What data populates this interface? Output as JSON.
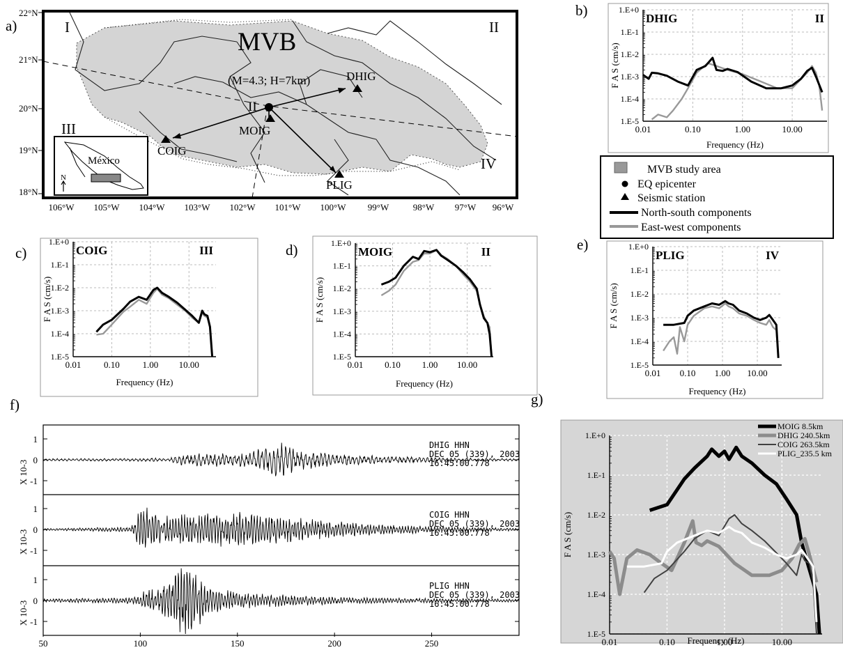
{
  "panel_letters": {
    "a": "a)",
    "b": "b)",
    "c": "c)",
    "d": "d)",
    "e": "e)",
    "f": "f)",
    "g": "g)"
  },
  "map": {
    "title": "MVB",
    "region_labels": [
      "I",
      "II",
      "III",
      "IV"
    ],
    "event_label": "(M=4.3; H=7km)",
    "epicenter_label": "II",
    "inset_country": "México",
    "north_arrow": "N",
    "lat_labels": [
      "22°N",
      "21°N",
      "20°N",
      "19°N",
      "18°N"
    ],
    "lon_labels": [
      "106°W",
      "105°W",
      "104°W",
      "103°W",
      "102°W",
      "101°W",
      "100°W",
      "99°W",
      "98°W",
      "97°W",
      "96°W"
    ],
    "stations": [
      {
        "name": "DHIG",
        "lon": -99.0,
        "lat": 20.35
      },
      {
        "name": "MOIG",
        "lon": -101.25,
        "lat": 19.75
      },
      {
        "name": "COIG",
        "lon": -103.75,
        "lat": 19.25
      },
      {
        "name": "PLIG",
        "lon": -99.45,
        "lat": 18.45
      }
    ],
    "epicenter": {
      "lon": -101.2,
      "lat": 19.95
    },
    "colors": {
      "study_area": "#d4d4d4",
      "station": "#000000"
    }
  },
  "legend": [
    {
      "symbol": "square",
      "label": "MVB study area",
      "color": "#999999"
    },
    {
      "symbol": "circle",
      "label": "EQ epicenter",
      "color": "#000000"
    },
    {
      "symbol": "triangle",
      "label": "Seismic station",
      "color": "#000000"
    },
    {
      "symbol": "line",
      "label": "North-south components",
      "color": "#000000"
    },
    {
      "symbol": "line",
      "label": "East-west components",
      "color": "#999999"
    }
  ],
  "chart_data": [
    {
      "type": "line",
      "panel": "b",
      "station": "DHIG",
      "zone": "II",
      "xlabel": "Frequency (Hz)",
      "ylabel": "F A S  (cm/s)",
      "xscale": "log",
      "yscale": "log",
      "xlim": [
        0.01,
        50
      ],
      "ylim": [
        1e-05,
        1
      ],
      "xticks": [
        "0.01",
        "0.10",
        "1.00",
        "10.00"
      ],
      "yticks": [
        "1.E-5",
        "1.E-4",
        "1.E-3",
        "1.E-2",
        "1.E-1",
        "1.E+0"
      ],
      "series": [
        {
          "component": "north-south",
          "color": "#000000",
          "x": [
            0.01,
            0.013,
            0.015,
            0.02,
            0.03,
            0.05,
            0.08,
            0.12,
            0.18,
            0.25,
            0.3,
            0.4,
            0.5,
            0.8,
            1.5,
            3,
            6,
            10,
            15,
            20,
            25,
            30,
            40
          ],
          "y": [
            0.0012,
            0.0008,
            0.0015,
            0.0014,
            0.0011,
            0.0006,
            0.0004,
            0.002,
            0.003,
            0.007,
            0.002,
            0.0018,
            0.0022,
            0.0016,
            0.0006,
            0.0003,
            0.0003,
            0.0004,
            0.0008,
            0.0018,
            0.0025,
            0.001,
            0.0002
          ]
        },
        {
          "component": "east-west",
          "color": "#999999",
          "x": [
            0.015,
            0.02,
            0.03,
            0.04,
            0.06,
            0.08,
            0.12,
            0.2,
            0.3,
            0.5,
            1,
            2,
            5,
            10,
            20,
            25,
            30,
            35,
            40
          ],
          "y": [
            1.2e-05,
            2e-05,
            1.5e-05,
            3e-05,
            0.0001,
            0.0003,
            0.0015,
            0.004,
            0.003,
            0.002,
            0.0013,
            0.0007,
            0.0003,
            0.0003,
            0.0015,
            0.003,
            0.0015,
            0.0004,
            3e-05
          ]
        }
      ]
    },
    {
      "type": "line",
      "panel": "c",
      "station": "COIG",
      "zone": "III",
      "xlabel": "Frequency (Hz)",
      "ylabel": "F A S  (cm/s)",
      "xscale": "log",
      "yscale": "log",
      "xlim": [
        0.01,
        50
      ],
      "ylim": [
        1e-05,
        1
      ],
      "xticks": [
        "0.01",
        "0.10",
        "1.00",
        "10.00"
      ],
      "yticks": [
        "1.E-5",
        "1.E-4",
        "1.E-3",
        "1.E-2",
        "1.E-1",
        "1.E+0"
      ],
      "series": [
        {
          "component": "north-south",
          "color": "#000000",
          "x": [
            0.04,
            0.06,
            0.1,
            0.2,
            0.3,
            0.5,
            0.8,
            1.2,
            1.5,
            2,
            3,
            5,
            8,
            12,
            18,
            22,
            25,
            30,
            35,
            40
          ],
          "y": [
            0.00012,
            0.00025,
            0.0004,
            0.0012,
            0.0025,
            0.004,
            0.003,
            0.008,
            0.01,
            0.006,
            0.004,
            0.0022,
            0.0011,
            0.0006,
            0.0003,
            0.001,
            0.0007,
            0.0006,
            0.0002,
            1e-05
          ]
        },
        {
          "component": "east-west",
          "color": "#999999",
          "x": [
            0.04,
            0.06,
            0.1,
            0.2,
            0.3,
            0.5,
            0.8,
            1.2,
            1.5,
            2,
            3,
            5,
            8,
            12,
            18,
            22,
            25,
            30,
            35,
            40
          ],
          "y": [
            9e-05,
            0.0001,
            0.00025,
            0.0009,
            0.0015,
            0.003,
            0.002,
            0.006,
            0.009,
            0.005,
            0.0035,
            0.0018,
            0.001,
            0.0005,
            0.0003,
            0.0008,
            0.0006,
            0.0005,
            0.0002,
            1e-05
          ]
        }
      ]
    },
    {
      "type": "line",
      "panel": "d",
      "station": "MOIG",
      "zone": "II",
      "xlabel": "Frequency (Hz)",
      "ylabel": "F A S  (cm/s)",
      "xscale": "log",
      "yscale": "log",
      "xlim": [
        0.01,
        50
      ],
      "ylim": [
        1e-05,
        1
      ],
      "xticks": [
        "0.01",
        "0.10",
        "1.00",
        "10.00"
      ],
      "yticks": [
        "1.E-5",
        "1.E-4",
        "1.E-3",
        "1.E-2",
        "1.E-1",
        "1.E+0"
      ],
      "series": [
        {
          "component": "north-south",
          "color": "#000000",
          "x": [
            0.05,
            0.08,
            0.12,
            0.2,
            0.35,
            0.5,
            0.7,
            1,
            1.5,
            2,
            3,
            5,
            8,
            12,
            18,
            22,
            28,
            35,
            40,
            45
          ],
          "y": [
            0.015,
            0.02,
            0.03,
            0.1,
            0.25,
            0.2,
            0.45,
            0.4,
            0.5,
            0.28,
            0.18,
            0.1,
            0.05,
            0.025,
            0.01,
            0.002,
            0.0005,
            0.0003,
            0.0001,
            1e-05
          ]
        },
        {
          "component": "east-west",
          "color": "#999999",
          "x": [
            0.05,
            0.08,
            0.12,
            0.2,
            0.35,
            0.5,
            0.7,
            1,
            1.5,
            2,
            3,
            5,
            8,
            12,
            18,
            22,
            28,
            35,
            40,
            45
          ],
          "y": [
            0.005,
            0.008,
            0.015,
            0.06,
            0.15,
            0.18,
            0.35,
            0.35,
            0.5,
            0.3,
            0.2,
            0.1,
            0.04,
            0.02,
            0.008,
            0.002,
            0.0006,
            0.0003,
            0.0002,
            1e-05
          ]
        }
      ]
    },
    {
      "type": "line",
      "panel": "e",
      "station": "PLIG",
      "zone": "IV",
      "xlabel": "Frequency (Hz)",
      "ylabel": "F A S  (cm/s)",
      "xscale": "log",
      "yscale": "log",
      "xlim": [
        0.01,
        50
      ],
      "ylim": [
        1e-05,
        1
      ],
      "xticks": [
        "0.01",
        "0.10",
        "1.00",
        "10.00"
      ],
      "yticks": [
        "1.E-5",
        "1.E-4",
        "1.E-3",
        "1.E-2",
        "1.E-1",
        "1.E+0"
      ],
      "series": [
        {
          "component": "north-south",
          "color": "#000000",
          "x": [
            0.02,
            0.04,
            0.08,
            0.1,
            0.15,
            0.3,
            0.5,
            0.8,
            1.2,
            1.5,
            2,
            3,
            5,
            8,
            12,
            18,
            22,
            28,
            35,
            40
          ],
          "y": [
            0.0005,
            0.0005,
            0.0006,
            0.0012,
            0.002,
            0.003,
            0.004,
            0.0035,
            0.005,
            0.004,
            0.0035,
            0.002,
            0.0015,
            0.001,
            0.0008,
            0.001,
            0.0013,
            0.0008,
            0.0005,
            2e-05
          ]
        },
        {
          "component": "east-west",
          "color": "#999999",
          "x": [
            0.02,
            0.03,
            0.04,
            0.05,
            0.06,
            0.08,
            0.1,
            0.15,
            0.3,
            0.5,
            0.8,
            1.2,
            1.5,
            2,
            3,
            5,
            8,
            12,
            18,
            22,
            28,
            35,
            40
          ],
          "y": [
            4e-05,
            0.0001,
            0.00015,
            3e-05,
            0.0004,
            0.0001,
            0.0005,
            0.0012,
            0.0025,
            0.003,
            0.0025,
            0.004,
            0.003,
            0.0025,
            0.0015,
            0.0012,
            0.0008,
            0.0006,
            0.0005,
            0.0008,
            0.0004,
            0.0003,
            2e-05
          ]
        }
      ]
    },
    {
      "type": "line",
      "panel": "f",
      "kind": "seismogram",
      "xlim": [
        50,
        295
      ],
      "xticks": [
        "50",
        "100",
        "150",
        "200",
        "250"
      ],
      "traces": [
        {
          "header": [
            "DHIG   HHN",
            "DEC 05 (339), 2003",
            "16:45:00.778"
          ],
          "ylabel": "X 10-3",
          "yticks": [
            "1",
            "0",
            "-1"
          ],
          "envelope": [
            [
              50,
              0.05
            ],
            [
              90,
              0.06
            ],
            [
              115,
              0.08
            ],
            [
              122,
              0.25
            ],
            [
              135,
              0.3
            ],
            [
              150,
              0.25
            ],
            [
              160,
              0.45
            ],
            [
              172,
              0.8
            ],
            [
              180,
              0.45
            ],
            [
              200,
              0.25
            ],
            [
              230,
              0.15
            ],
            [
              260,
              0.08
            ],
            [
              295,
              0.05
            ]
          ]
        },
        {
          "header": [
            "COIG   HHN",
            "DEC 05 (339), 2003",
            "16:45:00.778"
          ],
          "ylabel": "X 10-3",
          "yticks": [
            "1",
            "0",
            "-1"
          ],
          "envelope": [
            [
              50,
              0.04
            ],
            [
              70,
              0.07
            ],
            [
              95,
              0.1
            ],
            [
              100,
              0.9
            ],
            [
              105,
              1.0
            ],
            [
              110,
              0.6
            ],
            [
              130,
              0.7
            ],
            [
              150,
              0.75
            ],
            [
              175,
              0.55
            ],
            [
              200,
              0.35
            ],
            [
              230,
              0.2
            ],
            [
              260,
              0.12
            ],
            [
              295,
              0.06
            ]
          ]
        },
        {
          "header": [
            "PLIG   HHN",
            "DEC 05 (339), 2003",
            "16:45:00.778"
          ],
          "ylabel": "X 10-3",
          "yticks": [
            "1",
            "0",
            "-1"
          ],
          "envelope": [
            [
              50,
              0.08
            ],
            [
              80,
              0.1
            ],
            [
              98,
              0.15
            ],
            [
              102,
              0.5
            ],
            [
              112,
              0.7
            ],
            [
              122,
              1.5
            ],
            [
              128,
              1.3
            ],
            [
              135,
              0.6
            ],
            [
              150,
              0.35
            ],
            [
              175,
              0.25
            ],
            [
              200,
              0.15
            ],
            [
              240,
              0.1
            ],
            [
              295,
              0.06
            ]
          ]
        }
      ]
    },
    {
      "type": "line",
      "panel": "g",
      "xlabel": "Frequency (Hz)",
      "ylabel": "F A S (cm/s)",
      "xscale": "log",
      "yscale": "log",
      "xlim": [
        0.01,
        50
      ],
      "ylim": [
        1e-05,
        1
      ],
      "xticks": [
        "0.01",
        "0.10",
        "1.00",
        "10.00"
      ],
      "yticks": [
        "1.E-5",
        "1.E-4",
        "1.E-3",
        "1.E-2",
        "1.E-1",
        "1.E+0"
      ],
      "background": "#d6d6d6",
      "series": [
        {
          "name": "MOIG 8.5km",
          "color": "#000000",
          "width": 5,
          "x": [
            0.05,
            0.1,
            0.2,
            0.3,
            0.5,
            0.6,
            0.8,
            1,
            1.2,
            1.6,
            2,
            3,
            5,
            8,
            12,
            18,
            22,
            28,
            35,
            40,
            45
          ],
          "y": [
            0.013,
            0.018,
            0.08,
            0.15,
            0.3,
            0.45,
            0.3,
            0.4,
            0.25,
            0.5,
            0.3,
            0.2,
            0.1,
            0.06,
            0.025,
            0.01,
            0.002,
            0.0006,
            0.0002,
            0.0001,
            1e-05
          ]
        },
        {
          "name": "DHIG 240.5km",
          "color": "#8c8c8c",
          "width": 5,
          "x": [
            0.01,
            0.012,
            0.015,
            0.02,
            0.03,
            0.05,
            0.08,
            0.12,
            0.2,
            0.28,
            0.32,
            0.4,
            0.5,
            0.8,
            1.5,
            3,
            6,
            10,
            15,
            20,
            25,
            30,
            40
          ],
          "y": [
            0.0012,
            0.0008,
            0.0001,
            0.0008,
            0.0013,
            0.001,
            0.0006,
            0.0004,
            0.002,
            0.007,
            0.002,
            0.0017,
            0.0022,
            0.0016,
            0.0006,
            0.0003,
            0.0003,
            0.0004,
            0.0008,
            0.0018,
            0.0025,
            0.001,
            0.0002
          ]
        },
        {
          "name": "COIG 263.5km",
          "color": "#404040",
          "width": 2,
          "x": [
            0.04,
            0.06,
            0.1,
            0.2,
            0.3,
            0.5,
            0.8,
            1.2,
            1.5,
            2,
            3,
            5,
            8,
            12,
            18,
            22,
            25,
            30,
            35,
            40
          ],
          "y": [
            0.00011,
            0.00025,
            0.0004,
            0.0012,
            0.0025,
            0.004,
            0.003,
            0.008,
            0.01,
            0.006,
            0.004,
            0.0022,
            0.0011,
            0.0006,
            0.0003,
            0.001,
            0.0007,
            0.0006,
            0.0002,
            1e-05
          ]
        },
        {
          "name": "PLIG_235.5 km",
          "color": "#ffffff",
          "width": 3,
          "x": [
            0.02,
            0.04,
            0.08,
            0.1,
            0.15,
            0.3,
            0.5,
            0.8,
            1.2,
            1.5,
            2,
            3,
            5,
            8,
            12,
            18,
            22,
            28,
            35,
            40
          ],
          "y": [
            0.0005,
            0.0005,
            0.0006,
            0.0012,
            0.002,
            0.003,
            0.004,
            0.0035,
            0.005,
            0.004,
            0.0035,
            0.002,
            0.0015,
            0.001,
            0.0008,
            0.001,
            0.0013,
            0.0008,
            0.0005,
            2e-05
          ]
        }
      ]
    }
  ]
}
